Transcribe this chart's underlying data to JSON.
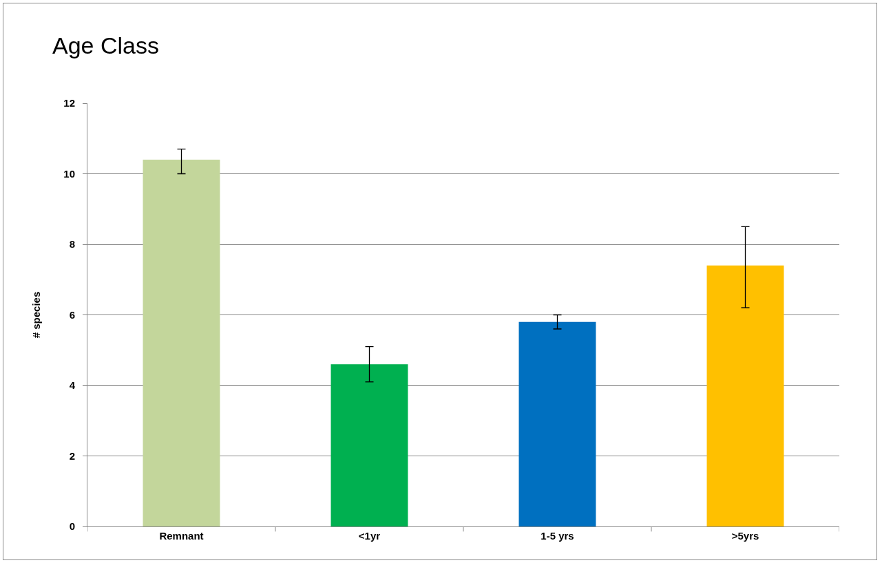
{
  "chart_data": {
    "type": "bar",
    "title": "Age Class",
    "ylabel": "# species",
    "categories": [
      "Remnant",
      "<1yr",
      "1-5 yrs",
      ">5yrs"
    ],
    "values": [
      10.4,
      4.6,
      5.8,
      7.4
    ],
    "colors": [
      "#c3d69b",
      "#00b050",
      "#0070c0",
      "#ffc000"
    ],
    "errors": [
      [
        10.0,
        10.7
      ],
      [
        4.1,
        5.1
      ],
      [
        5.6,
        6.0
      ],
      [
        6.2,
        8.5
      ]
    ],
    "ylim": [
      0,
      12
    ],
    "yticks": [
      0,
      2,
      4,
      6,
      8,
      10,
      12
    ],
    "grid": "y"
  }
}
